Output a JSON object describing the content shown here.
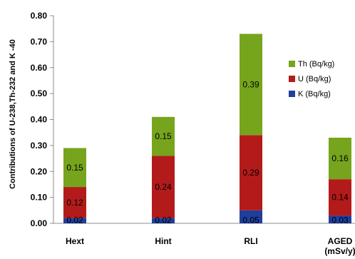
{
  "chart_data": {
    "type": "bar",
    "stacked": true,
    "ylabel": "Contributions of U-238,Th-232 and K -40",
    "xlabel": "",
    "ylim": [
      0,
      0.8
    ],
    "yticks": [
      "0.00",
      "0.10",
      "0.20",
      "0.30",
      "0.40",
      "0.50",
      "0.60",
      "0.70",
      "0.80"
    ],
    "categories": [
      "Hext",
      "Hint",
      "RLI",
      "AGED (mSv/y)"
    ],
    "category_lines": [
      [
        "Hext"
      ],
      [
        "Hint"
      ],
      [
        "RLI"
      ],
      [
        "AGED",
        "(mSv/y)"
      ]
    ],
    "series": [
      {
        "name": "K (Bq/kg)",
        "color": "#1f3f9e",
        "values": [
          0.02,
          0.02,
          0.05,
          0.03
        ],
        "labels": [
          "0.02",
          "0.02",
          "0.05",
          "0.03"
        ]
      },
      {
        "name": "U (Bq/kg)",
        "color": "#b31b1b",
        "values": [
          0.12,
          0.24,
          0.29,
          0.14
        ],
        "labels": [
          "0.12",
          "0.24",
          "0.29",
          "0.14"
        ]
      },
      {
        "name": "Th (Bq/kg)",
        "color": "#76a51d",
        "values": [
          0.15,
          0.15,
          0.39,
          0.16
        ],
        "labels": [
          "0.15",
          "0.15",
          "0.39",
          "0.16"
        ]
      }
    ],
    "legend_order": [
      "Th (Bq/kg)",
      "U (Bq/kg)",
      "K (Bq/kg)"
    ],
    "legend_position": "right",
    "grid": false
  }
}
